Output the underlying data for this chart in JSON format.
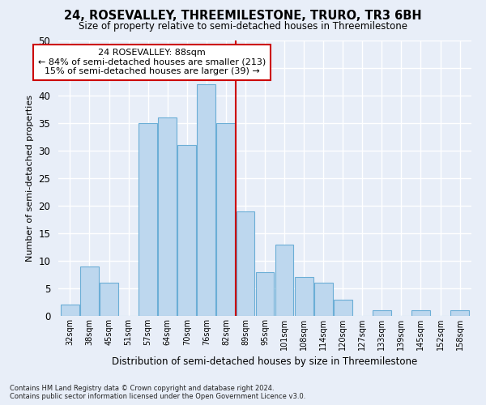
{
  "title": "24, ROSEVALLEY, THREEMILESTONE, TRURO, TR3 6BH",
  "subtitle": "Size of property relative to semi-detached houses in Threemilestone",
  "xlabel": "Distribution of semi-detached houses by size in Threemilestone",
  "ylabel": "Number of semi-detached properties",
  "categories": [
    "32sqm",
    "38sqm",
    "45sqm",
    "51sqm",
    "57sqm",
    "64sqm",
    "70sqm",
    "76sqm",
    "82sqm",
    "89sqm",
    "95sqm",
    "101sqm",
    "108sqm",
    "114sqm",
    "120sqm",
    "127sqm",
    "133sqm",
    "139sqm",
    "145sqm",
    "152sqm",
    "158sqm"
  ],
  "values": [
    2,
    9,
    6,
    0,
    35,
    36,
    31,
    42,
    35,
    19,
    8,
    13,
    7,
    6,
    3,
    0,
    1,
    0,
    1,
    0,
    1
  ],
  "bar_color": "#bdd7ee",
  "bar_edge_color": "#6baed6",
  "ylim": [
    0,
    50
  ],
  "yticks": [
    0,
    5,
    10,
    15,
    20,
    25,
    30,
    35,
    40,
    45,
    50
  ],
  "annotation_title": "24 ROSEVALLEY: 88sqm",
  "annotation_line1": "← 84% of semi-detached houses are smaller (213)",
  "annotation_line2": "15% of semi-detached houses are larger (39) →",
  "red_line_color": "#cc0000",
  "annotation_box_color": "#ffffff",
  "annotation_box_edge": "#cc0000",
  "footer1": "Contains HM Land Registry data © Crown copyright and database right 2024.",
  "footer2": "Contains public sector information licensed under the Open Government Licence v3.0.",
  "bg_color": "#e8eef8",
  "plot_bg_color": "#e8eef8"
}
